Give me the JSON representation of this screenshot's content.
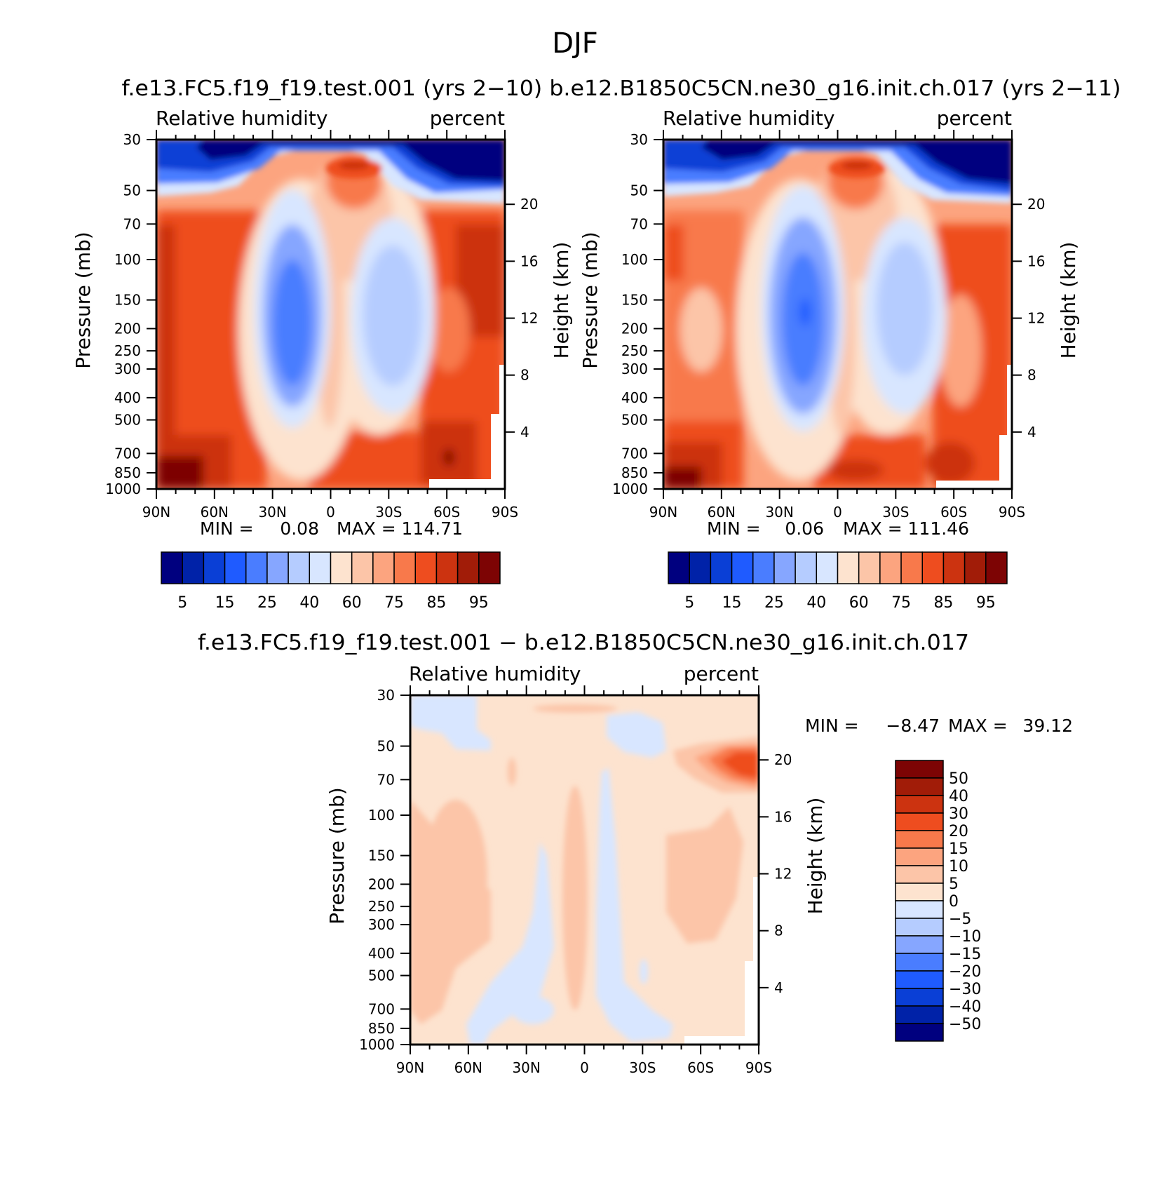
{
  "figure": {
    "season": "DJF",
    "top_caption": "f.e13.FC5.f19_f19.test.001 (yrs 2−10) b.e12.B1850C5CN.ne30_g16.init.ch.017 (yrs 2−11)",
    "diff_caption": "f.e13.FC5.f19_f19.test.001 − b.e12.B1850C5CN.ne30_g16.init.ch.017"
  },
  "chart_data": [
    {
      "type": "heatmap",
      "variable": "Relative humidity",
      "units": "percent",
      "ylabel": "Pressure (mb)",
      "y2label": "Height (km)",
      "x_ticks": [
        "90N",
        "60N",
        "30N",
        "0",
        "30S",
        "60S",
        "90S"
      ],
      "y_ticks": [
        30,
        50,
        70,
        100,
        150,
        200,
        250,
        300,
        400,
        500,
        700,
        850,
        1000
      ],
      "y2_ticks": [
        20,
        16,
        12,
        8,
        4
      ],
      "min_label": "MIN =",
      "min_value": "0.08",
      "max_label": "MAX =",
      "max_value": "114.71",
      "colorbar": {
        "labels": [
          "5",
          "15",
          "25",
          "40",
          "60",
          "75",
          "85",
          "95"
        ],
        "colors": [
          "#00007f",
          "#0022a8",
          "#0a3fd6",
          "#1f5bff",
          "#4a7dff",
          "#86a6ff",
          "#b5ccff",
          "#d8e6ff",
          "#fde3cf",
          "#fcc5a8",
          "#fca47f",
          "#f8794b",
          "#ee4d1f",
          "#cc3310",
          "#a11c08",
          "#7d0404"
        ]
      }
    },
    {
      "type": "heatmap",
      "variable": "Relative humidity",
      "units": "percent",
      "ylabel": "Pressure (mb)",
      "y2label": "Height (km)",
      "x_ticks": [
        "90N",
        "60N",
        "30N",
        "0",
        "30S",
        "60S",
        "90S"
      ],
      "y_ticks": [
        30,
        50,
        70,
        100,
        150,
        200,
        250,
        300,
        400,
        500,
        700,
        850,
        1000
      ],
      "y2_ticks": [
        20,
        16,
        12,
        8,
        4
      ],
      "min_label": "MIN =",
      "min_value": "0.06",
      "max_label": "MAX =",
      "max_value": "111.46",
      "colorbar": {
        "labels": [
          "5",
          "15",
          "25",
          "40",
          "60",
          "75",
          "85",
          "95"
        ],
        "colors": [
          "#00007f",
          "#0022a8",
          "#0a3fd6",
          "#1f5bff",
          "#4a7dff",
          "#86a6ff",
          "#b5ccff",
          "#d8e6ff",
          "#fde3cf",
          "#fcc5a8",
          "#fca47f",
          "#f8794b",
          "#ee4d1f",
          "#cc3310",
          "#a11c08",
          "#7d0404"
        ]
      }
    },
    {
      "type": "heatmap",
      "variable": "Relative humidity",
      "units": "percent",
      "ylabel": "Pressure (mb)",
      "y2label": "Height (km)",
      "x_ticks": [
        "90N",
        "60N",
        "30N",
        "0",
        "30S",
        "60S",
        "90S"
      ],
      "y_ticks": [
        30,
        50,
        70,
        100,
        150,
        200,
        250,
        300,
        400,
        500,
        700,
        850,
        1000
      ],
      "y2_ticks": [
        20,
        16,
        12,
        8,
        4
      ],
      "min_label": "MIN =",
      "min_value": "−8.47",
      "max_label": "MAX =",
      "max_value": "39.12",
      "colorbar": {
        "labels": [
          "50",
          "40",
          "30",
          "20",
          "15",
          "10",
          "5",
          "0",
          "−5",
          "−10",
          "−15",
          "−20",
          "−30",
          "−40",
          "−50"
        ],
        "colors": [
          "#7d0404",
          "#a11c08",
          "#cc3310",
          "#ee4d1f",
          "#f8794b",
          "#fca47f",
          "#fcc5a8",
          "#fde3cf",
          "#d8e6ff",
          "#b5ccff",
          "#86a6ff",
          "#4a7dff",
          "#1f5bff",
          "#0a3fd6",
          "#0022a8",
          "#00007f"
        ]
      }
    }
  ]
}
